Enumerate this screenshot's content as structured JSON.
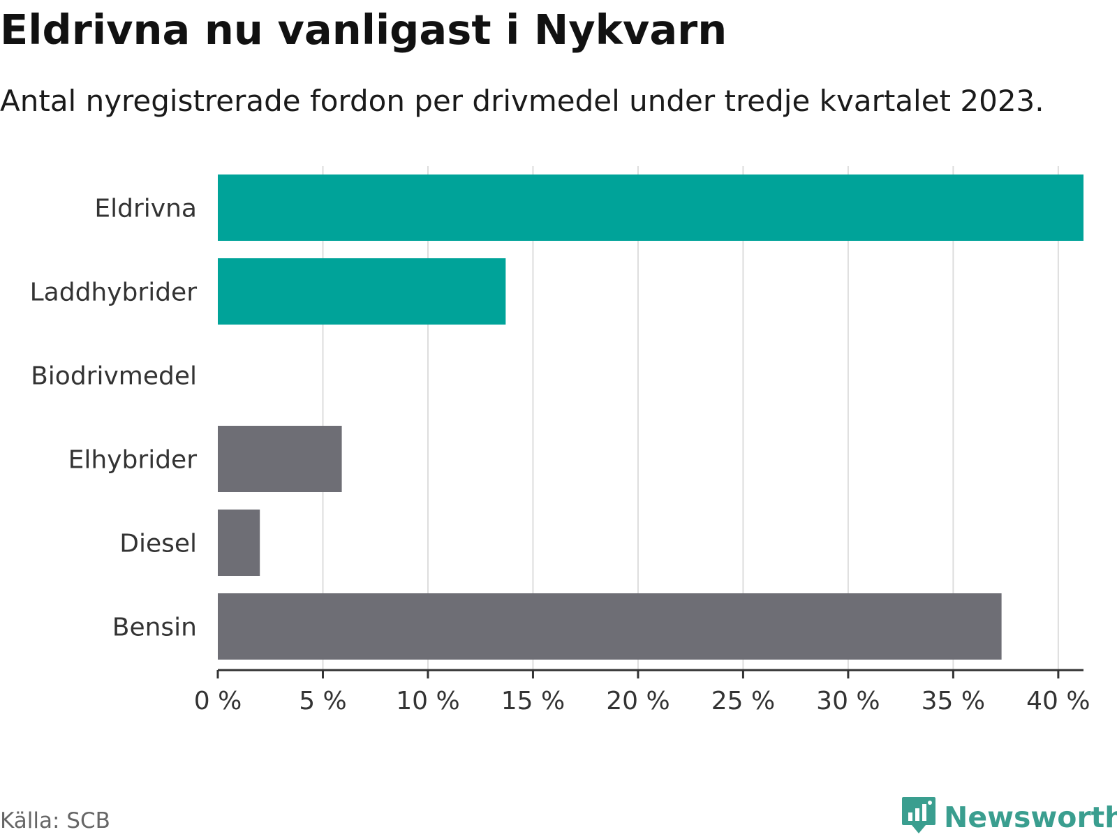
{
  "title": "Eldrivna nu vanligast i Nykvarn",
  "subtitle": "Antal nyregistrerade fordon per drivmedel under tredje kvartalet 2023.",
  "source": "Källa: SCB",
  "brand": {
    "name": "Newsworthy",
    "icon": "newsworthy-logo-icon",
    "color": "#3a9e8f"
  },
  "colors": {
    "highlight": "#00a399",
    "neutral": "#6e6e75",
    "grid": "#dddddd",
    "axis": "#333333"
  },
  "chart_data": {
    "type": "bar",
    "orientation": "horizontal",
    "title": "Eldrivna nu vanligast i Nykvarn",
    "subtitle": "Antal nyregistrerade fordon per drivmedel under tredje kvartalet 2023.",
    "categories": [
      "Eldrivna",
      "Laddhybrider",
      "Biodrivmedel",
      "Elhybrider",
      "Diesel",
      "Bensin"
    ],
    "values": [
      41.2,
      13.7,
      0,
      5.9,
      2.0,
      37.3
    ],
    "groups": [
      "highlight",
      "highlight",
      "highlight",
      "neutral",
      "neutral",
      "neutral"
    ],
    "unit": "%",
    "xlim": [
      0,
      41.2
    ],
    "xticks": [
      0,
      5,
      10,
      15,
      20,
      25,
      30,
      35,
      40
    ],
    "xtick_labels": [
      "0 %",
      "5 %",
      "10 %",
      "15 %",
      "20 %",
      "25 %",
      "30 %",
      "35 %",
      "40 %"
    ],
    "grid": true,
    "xlabel": "",
    "ylabel": ""
  }
}
